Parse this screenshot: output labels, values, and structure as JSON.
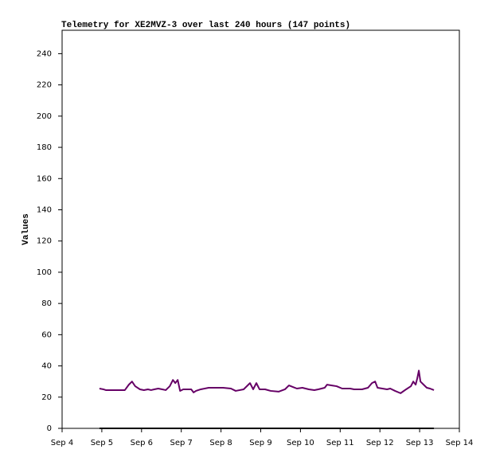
{
  "chart_data": {
    "type": "line",
    "title": "Telemetry for XE2MVZ-3 over last 240 hours (147 points)",
    "y_label": "Values",
    "xlim": [
      4,
      14
    ],
    "xticks": [
      {
        "value": 4,
        "label": "Sep 4"
      },
      {
        "value": 5,
        "label": "Sep 5"
      },
      {
        "value": 6,
        "label": "Sep 6"
      },
      {
        "value": 7,
        "label": "Sep 7"
      },
      {
        "value": 8,
        "label": "Sep 8"
      },
      {
        "value": 9,
        "label": "Sep 9"
      },
      {
        "value": 10,
        "label": "Sep 10"
      },
      {
        "value": 11,
        "label": "Sep 11"
      },
      {
        "value": 12,
        "label": "Sep 12"
      },
      {
        "value": 13,
        "label": "Sep 13"
      },
      {
        "value": 14,
        "label": "Sep 14"
      }
    ],
    "ylim": [
      0,
      255
    ],
    "yticks": [
      0,
      20,
      40,
      60,
      80,
      100,
      120,
      140,
      160,
      180,
      200,
      220,
      240
    ],
    "grid": false,
    "series": [
      {
        "color": "#660066",
        "x": [
          4.94,
          5.04,
          5.1,
          5.24,
          5.58,
          5.68,
          5.76,
          5.84,
          5.96,
          6.06,
          6.16,
          6.24,
          6.32,
          6.42,
          6.52,
          6.61,
          6.71,
          6.79,
          6.85,
          6.91,
          6.97,
          7.05,
          7.25,
          7.31,
          7.37,
          7.49,
          7.69,
          8.05,
          8.25,
          8.37,
          8.57,
          8.73,
          8.81,
          8.89,
          8.97,
          9.11,
          9.25,
          9.45,
          9.61,
          9.71,
          9.81,
          9.91,
          10.05,
          10.21,
          10.35,
          10.45,
          10.61,
          10.67,
          10.79,
          10.91,
          11.05,
          11.25,
          11.35,
          11.55,
          11.7,
          11.8,
          11.88,
          11.94,
          12.06,
          12.18,
          12.26,
          12.38,
          12.52,
          12.66,
          12.78,
          12.84,
          12.9,
          12.94,
          12.98,
          13.02,
          13.1,
          13.18,
          13.26,
          13.36
        ],
        "values": [
          25.5,
          25,
          24.5,
          24.5,
          24.5,
          28,
          30,
          27,
          25,
          24.5,
          25,
          24.5,
          25,
          25.5,
          25,
          24.5,
          27,
          31,
          29,
          31,
          24,
          25,
          25,
          23,
          24,
          25,
          26,
          26,
          25.5,
          24,
          25,
          29,
          25,
          29,
          25,
          25,
          24,
          23.5,
          25,
          27.5,
          26.5,
          25.5,
          26,
          25,
          24.5,
          25,
          26,
          28,
          27.5,
          27,
          25.5,
          25.5,
          25,
          25,
          26,
          29,
          30,
          26,
          25.5,
          25,
          25.5,
          24,
          22.5,
          25,
          27,
          30,
          28,
          32,
          37,
          30,
          28,
          26,
          25.5,
          24.5
        ]
      },
      {
        "color": "#000000",
        "x": [
          4.94,
          13.36
        ],
        "values": [
          0,
          0
        ]
      }
    ]
  }
}
